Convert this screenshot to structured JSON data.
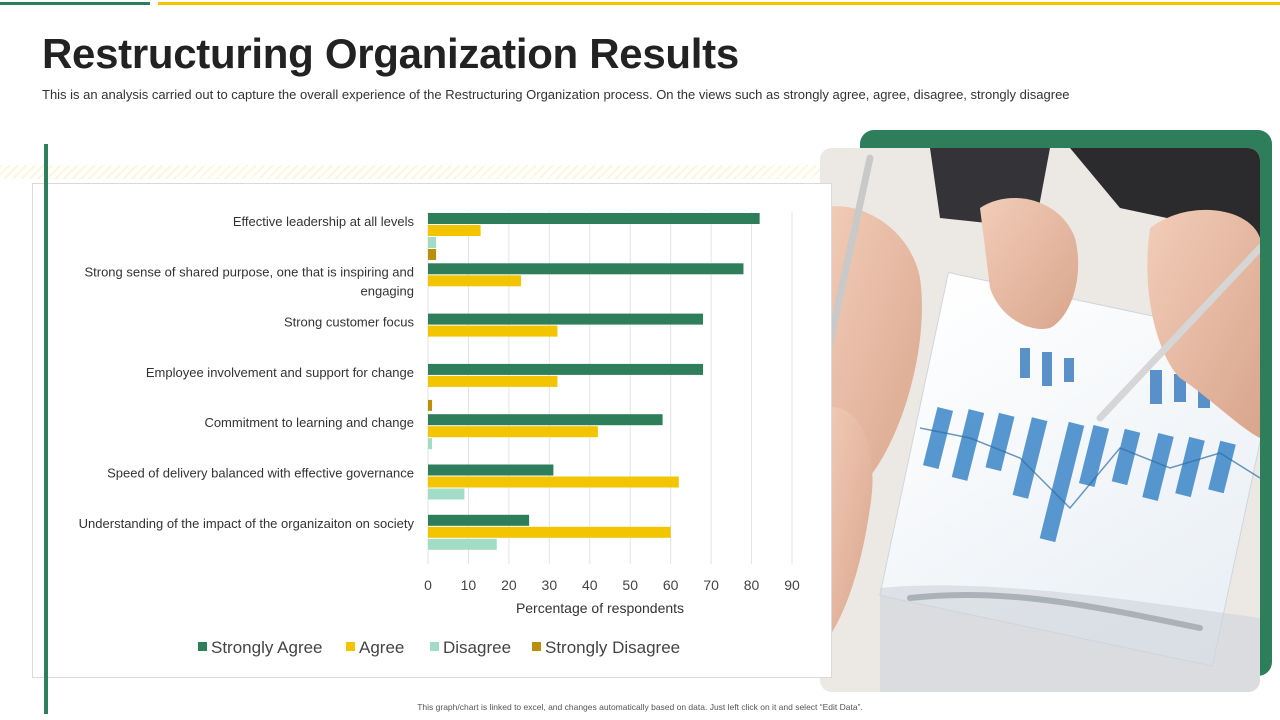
{
  "page": {
    "title": "Restructuring Organization Results",
    "subtitle": "This is an analysis carried out to capture the overall experience of the Restructuring Organization process. On the views such as strongly agree, agree, disagree, strongly disagree",
    "footer_note": "This graph/chart is linked to excel, and changes automatically based on data. Just left click on it and select “Edit Data”."
  },
  "colors": {
    "accent_green": "#2e7d5b",
    "accent_yellow": "#f2c500",
    "disagree": "#a3dcc5",
    "strongly_disagree": "#b8900c"
  },
  "image": {
    "icon": "business-report-photo"
  },
  "chart_data": {
    "type": "bar",
    "orientation": "horizontal",
    "categories": [
      [
        "Effective leadership at all levels"
      ],
      [
        "Strong sense of shared purpose, one that is inspiring and",
        "engaging"
      ],
      [
        "Strong customer focus"
      ],
      [
        "Employee involvement and support for change"
      ],
      [
        "Commitment to learning and change"
      ],
      [
        "Speed of delivery balanced with effective governance"
      ],
      [
        "Understanding of the impact of the organizaiton on society"
      ]
    ],
    "series": [
      {
        "name": "Strongly Agree",
        "color": "#2e7d5b",
        "values": [
          82,
          78,
          68,
          68,
          58,
          31,
          25
        ]
      },
      {
        "name": "Agree",
        "color": "#f2c500",
        "values": [
          13,
          23,
          32,
          32,
          42,
          62,
          60
        ]
      },
      {
        "name": "Disagree",
        "color": "#a3dcc5",
        "values": [
          2,
          0,
          0,
          0,
          1,
          9,
          17
        ]
      },
      {
        "name": "Strongly Disagree",
        "color": "#b8900c",
        "values": [
          2,
          0,
          0,
          1,
          0,
          0,
          0
        ]
      }
    ],
    "xlabel": "Percentage of respondents",
    "xlim": [
      0,
      90
    ],
    "xticks": [
      0,
      10,
      20,
      30,
      40,
      50,
      60,
      70,
      80,
      90
    ],
    "grid": "vertical",
    "legend": "bottom"
  }
}
